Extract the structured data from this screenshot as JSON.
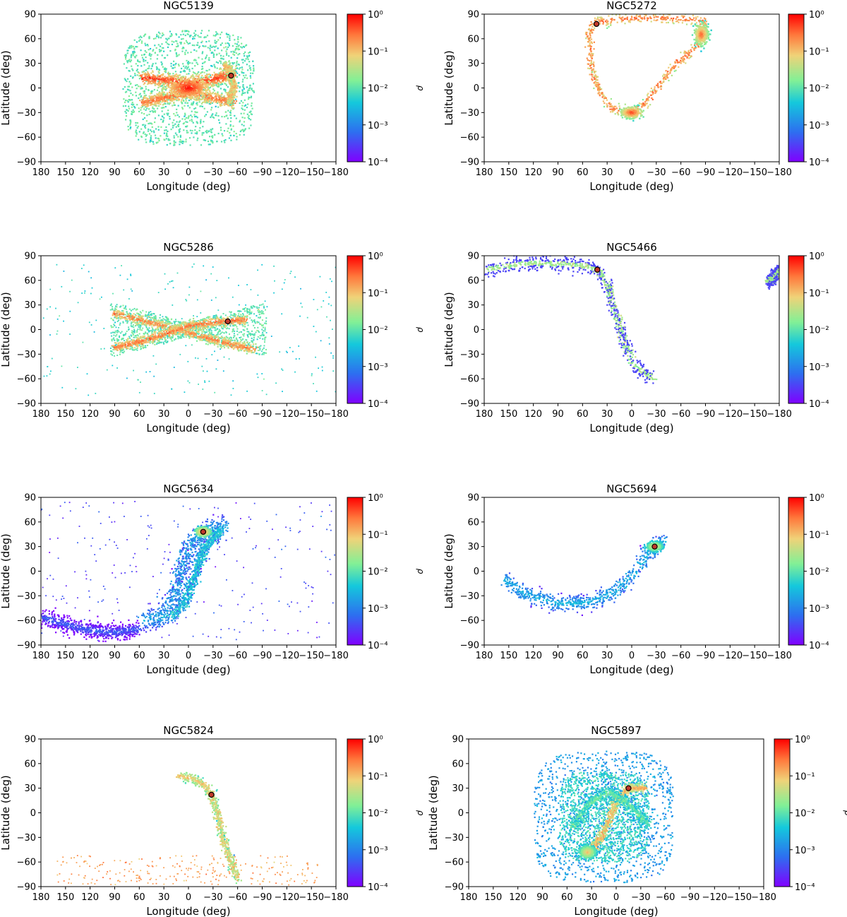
{
  "figure": {
    "x_axis_label": "Longitude (deg)",
    "y_axis_label": "Latitude (deg)",
    "colorbar_label": "ρ",
    "colors": {
      "marker": "#c0392b",
      "marker_edge": "#000000"
    }
  },
  "chart_data": [
    {
      "type": "scatter",
      "title": "NGC5139",
      "xlabel": "Longitude (deg)",
      "ylabel": "Latitude (deg)",
      "xlim": [
        180,
        -180
      ],
      "ylim": [
        -90,
        90
      ],
      "xticks": [
        "180",
        "150",
        "120",
        "90",
        "60",
        "30",
        "0",
        "−30",
        "−60",
        "−90",
        "−120",
        "−150",
        "−180"
      ],
      "yticks": [
        "90",
        "60",
        "30",
        "0",
        "−30",
        "−60",
        "−90"
      ],
      "colorbar": {
        "label": "ρ",
        "scale": "log",
        "ticks": [
          "10⁰",
          "10⁻¹",
          "10⁻²",
          "10⁻³",
          "10⁻⁴"
        ],
        "range": [
          -4,
          0
        ]
      },
      "cluster_position": [
        -52,
        15
      ],
      "stream_trace": [
        [
          55,
          12
        ],
        [
          30,
          8
        ],
        [
          0,
          5
        ],
        [
          -30,
          8
        ],
        [
          -52,
          15
        ],
        [
          -60,
          28
        ],
        [
          -50,
          40
        ]
      ],
      "features": [
        {
          "kind": "halo",
          "center": [
            0,
            0
          ],
          "half_width": [
            80,
            70
          ],
          "log_density": -2
        },
        {
          "kind": "band",
          "points": [
            [
              55,
              12
            ],
            [
              30,
              10
            ],
            [
              0,
              6
            ],
            [
              -30,
              10
            ],
            [
              -55,
              18
            ]
          ],
          "width": 8,
          "log_density": -0.3
        },
        {
          "kind": "band",
          "points": [
            [
              55,
              -18
            ],
            [
              30,
              -12
            ],
            [
              0,
              -6
            ],
            [
              -30,
              -12
            ],
            [
              -55,
              -18
            ]
          ],
          "width": 8,
          "log_density": -0.5
        },
        {
          "kind": "band",
          "points": [
            [
              -45,
              28
            ],
            [
              -52,
              15
            ],
            [
              -55,
              0
            ],
            [
              -50,
              -15
            ]
          ],
          "width": 6,
          "log_density": -0.8
        },
        {
          "kind": "blob",
          "center": [
            0,
            0
          ],
          "r": [
            25,
            12
          ],
          "log_density": 0
        }
      ]
    },
    {
      "type": "scatter",
      "title": "NGC5272",
      "xlabel": "Longitude (deg)",
      "ylabel": "Latitude (deg)",
      "xlim": [
        180,
        -180
      ],
      "ylim": [
        -90,
        90
      ],
      "xticks": [
        "180",
        "150",
        "120",
        "90",
        "60",
        "30",
        "0",
        "−30",
        "−60",
        "−90",
        "−120",
        "−150",
        "−180"
      ],
      "yticks": [
        "90",
        "60",
        "30",
        "0",
        "−30",
        "−60",
        "−90"
      ],
      "colorbar": {
        "label": "ρ",
        "scale": "log",
        "ticks": [
          "10⁰",
          "10⁻¹",
          "10⁻²",
          "10⁻³",
          "10⁻⁴"
        ],
        "range": [
          -4,
          0
        ]
      },
      "cluster_position": [
        43,
        78
      ],
      "features": [
        {
          "kind": "band",
          "points": [
            [
              48,
              80
            ],
            [
              0,
              85
            ],
            [
              -50,
              85
            ],
            [
              -88,
              82
            ],
            [
              -90,
              70
            ],
            [
              -78,
              50
            ],
            [
              -50,
              25
            ],
            [
              -30,
              0
            ],
            [
              -20,
              -15
            ],
            [
              -5,
              -28
            ],
            [
              0,
              -30
            ],
            [
              25,
              -25
            ],
            [
              40,
              -5
            ],
            [
              50,
              30
            ],
            [
              52,
              65
            ],
            [
              48,
              80
            ]
          ],
          "width": 6,
          "log_density": -0.5
        },
        {
          "kind": "blob",
          "center": [
            0,
            -30
          ],
          "r": [
            12,
            6
          ],
          "log_density": -0.2
        },
        {
          "kind": "blob",
          "center": [
            -85,
            65
          ],
          "r": [
            8,
            12
          ],
          "log_density": -0.4
        }
      ]
    },
    {
      "type": "scatter",
      "title": "NGC5286",
      "xlabel": "Longitude (deg)",
      "ylabel": "Latitude (deg)",
      "xlim": [
        180,
        -180
      ],
      "ylim": [
        -90,
        90
      ],
      "xticks": [
        "180",
        "150",
        "120",
        "90",
        "60",
        "30",
        "0",
        "−30",
        "−60",
        "−90",
        "−120",
        "−150",
        "−180"
      ],
      "yticks": [
        "90",
        "60",
        "30",
        "0",
        "−30",
        "−60",
        "−90"
      ],
      "colorbar": {
        "label": "ρ",
        "scale": "log",
        "ticks": [
          "10⁰",
          "10⁻¹",
          "10⁻²",
          "10⁻³",
          "10⁻⁴"
        ],
        "range": [
          -4,
          0
        ]
      },
      "cluster_position": [
        -48,
        10
      ],
      "features": [
        {
          "kind": "sparse",
          "center": [
            0,
            0
          ],
          "half_width": [
            180,
            80
          ],
          "log_density": -2.3
        },
        {
          "kind": "bowtie",
          "center": [
            0,
            0
          ],
          "half_width": [
            95,
            25
          ],
          "log_density": -2
        },
        {
          "kind": "band",
          "points": [
            [
              90,
              20
            ],
            [
              60,
              12
            ],
            [
              30,
              4
            ],
            [
              0,
              -4
            ],
            [
              -30,
              -12
            ],
            [
              -60,
              -20
            ],
            [
              -80,
              -24
            ]
          ],
          "width": 6,
          "log_density": -0.6
        },
        {
          "kind": "band",
          "points": [
            [
              90,
              -22
            ],
            [
              60,
              -15
            ],
            [
              30,
              -6
            ],
            [
              0,
              4
            ],
            [
              -30,
              9
            ],
            [
              -48,
              10
            ],
            [
              -70,
              12
            ]
          ],
          "width": 6,
          "log_density": -0.5
        }
      ]
    },
    {
      "type": "scatter",
      "title": "NGC5466",
      "xlabel": "Longitude (deg)",
      "ylabel": "Latitude (deg)",
      "xlim": [
        180,
        -180
      ],
      "ylim": [
        -90,
        90
      ],
      "xticks": [
        "180",
        "150",
        "120",
        "90",
        "60",
        "30",
        "0",
        "−30",
        "−60",
        "−90",
        "−120",
        "−150",
        "−180"
      ],
      "yticks": [
        "90",
        "60",
        "30",
        "0",
        "−30",
        "−60",
        "−90"
      ],
      "colorbar": {
        "label": "ρ",
        "scale": "log",
        "ticks": [
          "10⁰",
          "10⁻¹",
          "10⁻²",
          "10⁻³",
          "10⁻⁴"
        ],
        "range": [
          -4,
          0
        ]
      },
      "cluster_position": [
        42,
        73
      ],
      "features": [
        {
          "kind": "edged",
          "points": [
            [
              180,
              72
            ],
            [
              150,
              78
            ],
            [
              120,
              81
            ],
            [
              90,
              80
            ],
            [
              60,
              78
            ],
            [
              42,
              73
            ],
            [
              30,
              55
            ],
            [
              20,
              25
            ],
            [
              10,
              -10
            ],
            [
              0,
              -40
            ],
            [
              -25,
              -60
            ]
          ],
          "width": 8,
          "log_density": -1.6
        },
        {
          "kind": "edged",
          "points": [
            [
              -168,
              58
            ],
            [
              -175,
              66
            ],
            [
              -180,
              72
            ]
          ],
          "width": 6,
          "log_density": -1.6
        }
      ]
    },
    {
      "type": "scatter",
      "title": "NGC5634",
      "xlabel": "Longitude (deg)",
      "ylabel": "Latitude (deg)",
      "xlim": [
        180,
        -180
      ],
      "ylim": [
        -90,
        90
      ],
      "xticks": [
        "180",
        "150",
        "120",
        "90",
        "60",
        "30",
        "0",
        "−30",
        "−60",
        "−90",
        "−120",
        "−150",
        "−180"
      ],
      "yticks": [
        "90",
        "60",
        "30",
        "0",
        "−30",
        "−60",
        "−90"
      ],
      "colorbar": {
        "label": "ρ",
        "scale": "log",
        "ticks": [
          "10⁰",
          "10⁻¹",
          "10⁻²",
          "10⁻³",
          "10⁻⁴"
        ],
        "range": [
          -4,
          0
        ]
      },
      "cluster_position": [
        -18,
        48
      ],
      "features": [
        {
          "kind": "band",
          "points": [
            [
              -45,
              55
            ],
            [
              -18,
              48
            ],
            [
              0,
              30
            ],
            [
              10,
              0
            ],
            [
              15,
              -30
            ],
            [
              30,
              -55
            ],
            [
              55,
              -60
            ]
          ],
          "width": 14,
          "log_density": -2.6
        },
        {
          "kind": "band",
          "points": [
            [
              -40,
              50
            ],
            [
              -20,
              30
            ],
            [
              -10,
              0
            ],
            [
              5,
              -40
            ],
            [
              20,
              -55
            ]
          ],
          "width": 8,
          "log_density": -2.2
        },
        {
          "kind": "band",
          "points": [
            [
              180,
              -55
            ],
            [
              150,
              -65
            ],
            [
              120,
              -72
            ],
            [
              90,
              -75
            ],
            [
              60,
              -70
            ]
          ],
          "width": 10,
          "log_density": -3.3
        },
        {
          "kind": "blob",
          "center": [
            -18,
            48
          ],
          "r": [
            8,
            5
          ],
          "log_density": -0.5
        },
        {
          "kind": "sparse",
          "center": [
            0,
            0
          ],
          "half_width": [
            180,
            85
          ],
          "log_density": -3.5
        }
      ]
    },
    {
      "type": "scatter",
      "title": "NGC5694",
      "xlabel": "Longitude (deg)",
      "ylabel": "Latitude (deg)",
      "xlim": [
        180,
        -180
      ],
      "ylim": [
        -90,
        90
      ],
      "xticks": [
        "180",
        "150",
        "120",
        "90",
        "60",
        "30",
        "0",
        "−30",
        "−60",
        "−90",
        "−120",
        "−150",
        "−180"
      ],
      "yticks": [
        "90",
        "60",
        "30",
        "0",
        "−30",
        "−60",
        "−90"
      ],
      "colorbar": {
        "label": "ρ",
        "scale": "log",
        "ticks": [
          "10⁰",
          "10⁻¹",
          "10⁻²",
          "10⁻³",
          "10⁻⁴"
        ],
        "range": [
          -4,
          0
        ]
      },
      "cluster_position": [
        -28,
        30
      ],
      "features": [
        {
          "kind": "band",
          "points": [
            [
              155,
              -10
            ],
            [
              130,
              -28
            ],
            [
              90,
              -40
            ],
            [
              50,
              -38
            ],
            [
              20,
              -25
            ],
            [
              0,
              -5
            ],
            [
              -20,
              20
            ],
            [
              -40,
              38
            ]
          ],
          "width": 10,
          "log_density": -2.5
        },
        {
          "kind": "blob",
          "center": [
            -28,
            30
          ],
          "r": [
            10,
            6
          ],
          "log_density": -1.0
        }
      ]
    },
    {
      "type": "scatter",
      "title": "NGC5824",
      "xlabel": "Longitude (deg)",
      "ylabel": "Latitude (deg)",
      "xlim": [
        180,
        -180
      ],
      "ylim": [
        -90,
        90
      ],
      "xticks": [
        "180",
        "150",
        "120",
        "90",
        "60",
        "30",
        "0",
        "−30",
        "−60",
        "−90",
        "−120",
        "−150",
        "−180"
      ],
      "yticks": [
        "90",
        "60",
        "30",
        "0",
        "−30",
        "−60",
        "−90"
      ],
      "colorbar": {
        "label": "ρ",
        "scale": "log",
        "ticks": [
          "10⁰",
          "10⁻¹",
          "10⁻²",
          "10⁻³",
          "10⁻⁴"
        ],
        "range": [
          -4,
          0
        ]
      },
      "cluster_position": [
        -28,
        22
      ],
      "features": [
        {
          "kind": "band",
          "points": [
            [
              12,
              45
            ],
            [
              -5,
              42
            ],
            [
              -20,
              33
            ],
            [
              -28,
              22
            ],
            [
              -35,
              0
            ],
            [
              -42,
              -30
            ],
            [
              -52,
              -60
            ],
            [
              -60,
              -80
            ]
          ],
          "width": 6,
          "log_density": -1.0
        },
        {
          "kind": "sparse",
          "center": [
            0,
            -70
          ],
          "half_width": [
            160,
            18
          ],
          "log_density": -0.8
        }
      ]
    },
    {
      "type": "scatter",
      "title": "NGC5897",
      "xlabel": "Longitude (deg)",
      "ylabel": "Latitude (deg)",
      "xlim": [
        180,
        -180
      ],
      "ylim": [
        -90,
        90
      ],
      "xticks": [
        "180",
        "150",
        "120",
        "90",
        "60",
        "30",
        "0",
        "−30",
        "−60",
        "−90",
        "−120",
        "−150",
        "−180"
      ],
      "yticks": [
        "90",
        "60",
        "30",
        "0",
        "−30",
        "−60",
        "−90"
      ],
      "colorbar": {
        "label": "ρ",
        "scale": "log",
        "ticks": [
          "10⁰",
          "10⁻¹",
          "10⁻²",
          "10⁻³",
          "10⁻⁴"
        ],
        "range": [
          -4,
          0
        ]
      },
      "cluster_position": [
        -15,
        30
      ],
      "features": [
        {
          "kind": "halo",
          "center": [
            15,
            -5
          ],
          "half_width": [
            85,
            80
          ],
          "log_density": -2.8
        },
        {
          "kind": "halo",
          "center": [
            15,
            -5
          ],
          "half_width": [
            55,
            55
          ],
          "log_density": -2.2
        },
        {
          "kind": "band",
          "points": [
            [
              -35,
              30
            ],
            [
              -15,
              30
            ],
            [
              0,
              15
            ],
            [
              5,
              0
            ],
            [
              15,
              -25
            ],
            [
              30,
              -45
            ],
            [
              40,
              -50
            ]
          ],
          "width": 6,
          "log_density": -0.8
        },
        {
          "kind": "band",
          "points": [
            [
              55,
              -20
            ],
            [
              35,
              10
            ],
            [
              10,
              25
            ],
            [
              -10,
              15
            ],
            [
              -25,
              0
            ],
            [
              -40,
              -15
            ]
          ],
          "width": 8,
          "log_density": -1.8
        },
        {
          "kind": "blob",
          "center": [
            35,
            -48
          ],
          "r": [
            10,
            8
          ],
          "log_density": -0.9
        }
      ]
    }
  ]
}
